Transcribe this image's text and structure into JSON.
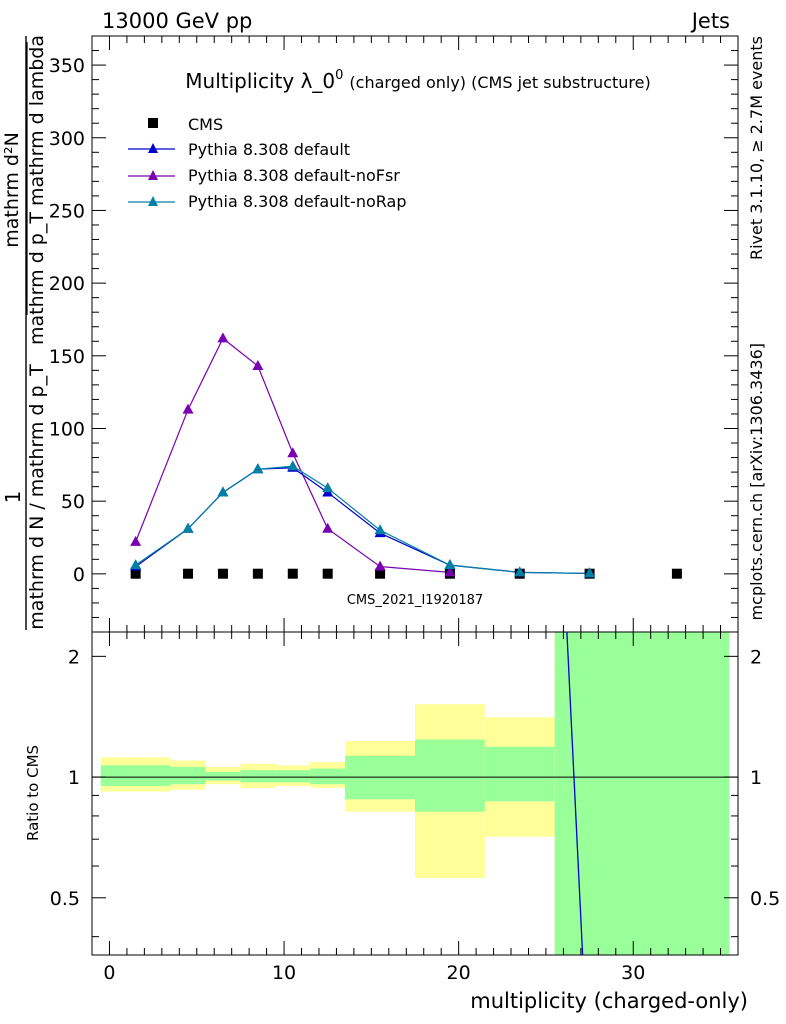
{
  "header": {
    "left": "13000 GeV pp",
    "right": "Jets"
  },
  "side_labels": {
    "rivet": "Rivet 3.1.10, ≥ 2.7M events",
    "mcplots": "mcplots.cern.ch [arXiv:1306.3436]"
  },
  "chart_data": {
    "type": "line",
    "title": "Multiplicity λ_0",
    "title_sup": "0",
    "title_suffix": "(charged only) (CMS jet substructure)",
    "watermark": "CMS_2021_I1920187",
    "xlabel": "multiplicity (charged-only)",
    "ylabel_main_fraction_numerator": "1",
    "ylabel_main_fraction_denominator": "mathrm d N / mathrm d p_T",
    "ylabel_main_numerator": "mathrm d²N",
    "ylabel_main_denominator": "mathrm d p_T mathrm d lambda",
    "ylabel_ratio": "Ratio to CMS",
    "xlim": [
      -1,
      36
    ],
    "ylim": [
      -40,
      370
    ],
    "ratio_ylim": [
      0.36,
      2.3
    ],
    "x_ticks": [
      "0",
      "10",
      "20",
      "30"
    ],
    "y_ticks": [
      "0",
      "50",
      "100",
      "150",
      "200",
      "250",
      "300",
      "350"
    ],
    "ratio_ticks": [
      "0.5",
      "1",
      "2"
    ],
    "legend_position": "top-left",
    "legend": {
      "cms": "CMS",
      "default": "Pythia 8.308 default",
      "nofsr": "Pythia 8.308 default-noFsr",
      "norap": "Pythia 8.308 default-noRap"
    },
    "data": {
      "name": "CMS",
      "x": [
        1.5,
        4.5,
        6.5,
        8.5,
        10.5,
        12.5,
        15.5,
        19.5,
        23.5,
        27.5,
        32.5
      ],
      "y": [
        0.1,
        0.1,
        0.1,
        0.1,
        0.1,
        0.1,
        0.1,
        0.1,
        0.1,
        0.1,
        0.1
      ]
    },
    "series": [
      {
        "name": "Pythia 8.308 default",
        "color": "#0000cc",
        "x": [
          1.5,
          4.5,
          6.5,
          8.5,
          10.5,
          12.5,
          15.5,
          19.5,
          23.5,
          27.5
        ],
        "y": [
          5,
          31,
          56,
          72,
          73,
          56,
          28,
          6,
          1,
          0.3
        ]
      },
      {
        "name": "Pythia 8.308 default-noFsr",
        "color": "#7a00b3",
        "x": [
          1.5,
          4.5,
          6.5,
          8.5,
          10.5,
          12.5,
          15.5,
          19.5
        ],
        "y": [
          22,
          113,
          162,
          143,
          83,
          31,
          5,
          1
        ]
      },
      {
        "name": "Pythia 8.308 default-noRap",
        "color": "#0080a6",
        "x": [
          1.5,
          4.5,
          6.5,
          8.5,
          10.5,
          12.5,
          15.5,
          19.5,
          23.5,
          27.5
        ],
        "y": [
          6,
          31,
          56,
          72,
          74,
          59,
          30,
          6,
          1,
          0.3
        ]
      }
    ],
    "ratio_bands": {
      "bins": [
        [
          -0.5,
          3.5
        ],
        [
          3.5,
          5.5
        ],
        [
          5.5,
          7.5
        ],
        [
          7.5,
          9.5
        ],
        [
          9.5,
          11.5
        ],
        [
          11.5,
          13.5
        ],
        [
          13.5,
          17.5
        ],
        [
          17.5,
          21.5
        ],
        [
          21.5,
          25.5
        ],
        [
          25.5,
          35.5
        ]
      ],
      "yellow": [
        [
          0.92,
          1.12
        ],
        [
          0.93,
          1.1
        ],
        [
          0.96,
          1.06
        ],
        [
          0.94,
          1.08
        ],
        [
          0.95,
          1.07
        ],
        [
          0.94,
          1.09
        ],
        [
          0.82,
          1.23
        ],
        [
          0.56,
          1.52
        ],
        [
          0.71,
          1.41
        ],
        [
          0.3,
          2.5
        ]
      ],
      "green": [
        [
          0.95,
          1.07
        ],
        [
          0.96,
          1.06
        ],
        [
          0.98,
          1.03
        ],
        [
          0.97,
          1.04
        ],
        [
          0.97,
          1.04
        ],
        [
          0.96,
          1.05
        ],
        [
          0.88,
          1.13
        ],
        [
          0.82,
          1.24
        ],
        [
          0.87,
          1.19
        ],
        [
          0.3,
          2.5
        ]
      ]
    },
    "ratio_line": {
      "name": "Pythia 8.308 default",
      "x": [
        26.2,
        27.1
      ],
      "y": [
        2.3,
        0.36
      ]
    }
  }
}
